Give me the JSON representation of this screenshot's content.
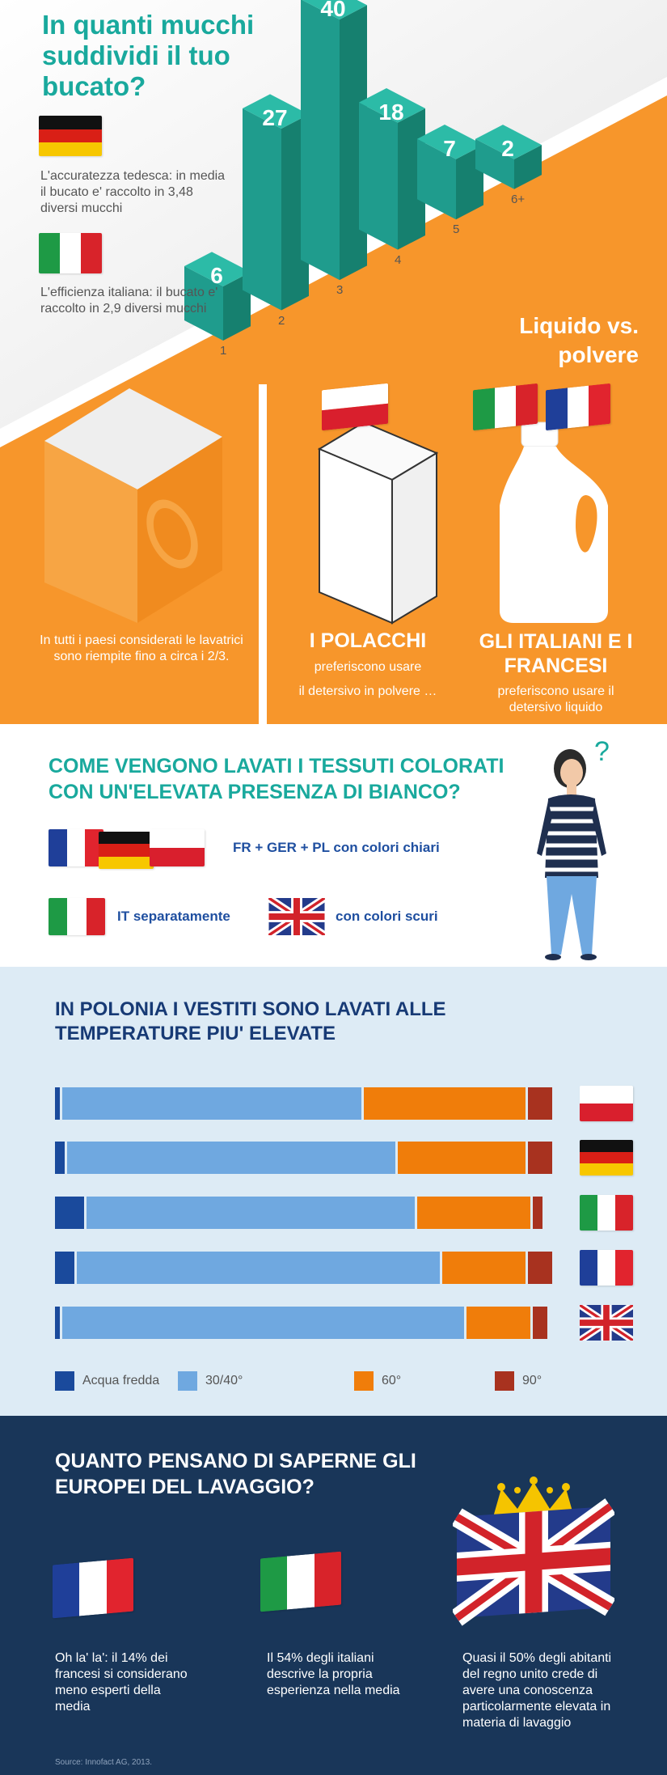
{
  "section1": {
    "question": "In quanti mucchi suddividi il tuo bucato?",
    "germany": {
      "flag": "germany-flag",
      "text": "L'accuratezza tedesca: in media il bucato e' raccolto in 3,48 diversi mucchi"
    },
    "italy": {
      "flag": "italy-flag",
      "text": "L'efficienza italiana: il bucato e' raccolto in 2,9 diversi mucchi"
    },
    "chart_data": {
      "type": "bar",
      "categories": [
        "1",
        "2",
        "3",
        "4",
        "5",
        "6+"
      ],
      "values": [
        6,
        27,
        40,
        18,
        7,
        2
      ],
      "title": "In quanti mucchi suddividi il tuo bucato?",
      "xlabel": "",
      "ylabel": "",
      "ylim": [
        0,
        40
      ],
      "color": "#22a393"
    },
    "washing_machine_text": "In tutti i paesi considerati le lavatrici sono riempite fino a circa i 2/3.",
    "liquid_title": "Liquido vs. polvere",
    "poles_title": "I POLACCHI",
    "poles_text1": "preferiscono usare",
    "poles_text2": "il detersivo in polvere …",
    "itfr_title": "GLI ITALIANI E I FRANCESI",
    "itfr_text": "preferiscono usare il detersivo liquido"
  },
  "section2": {
    "title": "COME VENGONO LAVATI I TESSUTI COLORATI CON UN'ELEVATA PRESENZA DI BIANCO?",
    "row1": "FR + GER + PL con colori chiari",
    "row2_a": "IT separatamente",
    "row2_b": "con colori scuri",
    "question_mark": "?"
  },
  "section3": {
    "title": "IN POLONIA I VESTITI SONO LAVATI ALLE TEMPERATURE PIU' ELEVATE",
    "chart_data": {
      "type": "bar",
      "orientation": "horizontal-stacked",
      "categories": [
        "Polonia",
        "Germania",
        "Italia",
        "Francia",
        "Regno Unito"
      ],
      "series": [
        {
          "name": "Acqua fredda",
          "color": "#1a4a9c",
          "values": [
            1,
            2,
            6,
            4,
            1
          ]
        },
        {
          "name": "30/40°",
          "color": "#6fa8e0",
          "values": [
            61,
            67,
            67,
            74,
            82
          ]
        },
        {
          "name": "60°",
          "color": "#f07d0a",
          "values": [
            33,
            26,
            23,
            17,
            13
          ]
        },
        {
          "name": "90°",
          "color": "#a8321f",
          "values": [
            5,
            5,
            2,
            5,
            3
          ]
        }
      ],
      "xlim": [
        0,
        100
      ],
      "legend": "bottom"
    }
  },
  "section4": {
    "title": "QUANTO PENSANO DI SAPERNE GLI EUROPEI DEL LAVAGGIO?",
    "fr_text": "Oh la' la': il 14% dei francesi si considerano meno esperti della media",
    "it_text": "Il 54% degli italiani descrive la propria esperienza nella media",
    "uk_text": "Quasi il 50% degli abitanti del regno unito crede di avere una conoscenza particolarmente elevata in materia di lavaggio",
    "source": "Source: Innofact AG, 2013."
  },
  "colors": {
    "teal": "#19a99d",
    "orange": "#f7962b",
    "navy": "#193659",
    "lightblue": "#ddebf5"
  }
}
